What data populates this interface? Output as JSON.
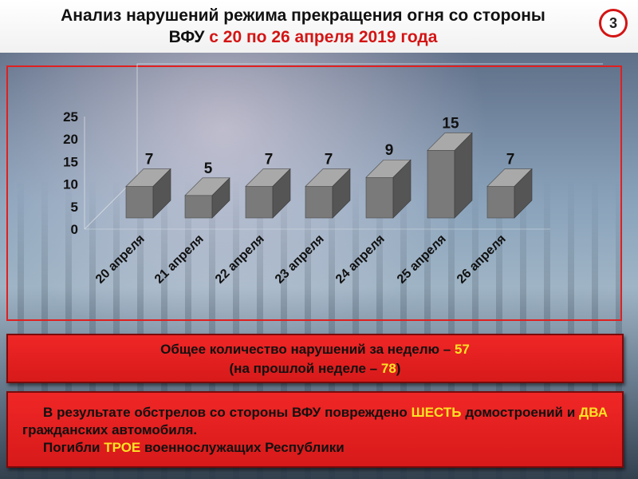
{
  "header": {
    "title_line1": "Анализ нарушений режима прекращения огня со стороны",
    "title_line2_prefix": "ВФУ",
    "title_line2_red": "с 20 по 26 апреля 2019 года",
    "page_number": "3"
  },
  "chart_data": {
    "type": "bar",
    "categories": [
      "20 апреля",
      "21 апреля",
      "22 апреля",
      "23 апреля",
      "24 апреля",
      "25 апреля",
      "26 апреля"
    ],
    "values": [
      7,
      5,
      7,
      7,
      9,
      15,
      7
    ],
    "ylim": [
      0,
      25
    ],
    "yticks": [
      0,
      5,
      10,
      15,
      20,
      25
    ],
    "title": "",
    "xlabel": "",
    "ylabel": "",
    "grid": false,
    "style": "3d-bars",
    "colors": {
      "bar_front": "#7a7a7a",
      "bar_top": "#a9a9a9",
      "bar_side": "#555555",
      "frame": "#e02020"
    }
  },
  "summary": {
    "line1_text": "Общее количество нарушений за неделю –",
    "line1_value": "57",
    "line2_prefix": "(на прошлой неделе –",
    "line2_value": "78",
    "line2_suffix": ")"
  },
  "details": {
    "p1_a": "В результате обстрелов со стороны ВФУ повреждено",
    "p1_b": "ШЕСТЬ",
    "p1_c": "домостроений и",
    "p1_d": "ДВА",
    "p1_e": "гражданских автомобиля.",
    "p2_a": "Погибли",
    "p2_b": "ТРОЕ",
    "p2_c": "военнослужащих Республики"
  }
}
